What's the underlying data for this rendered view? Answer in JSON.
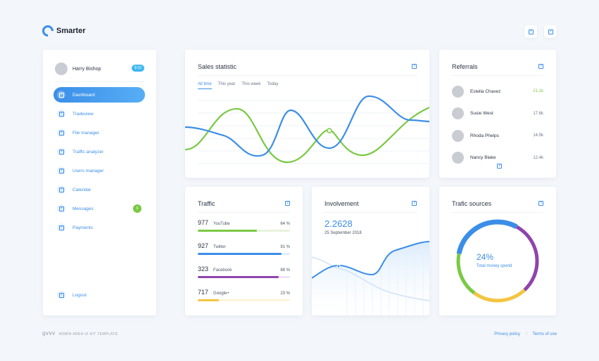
{
  "app": {
    "logo_text": "Smarter"
  },
  "header": {
    "icons": [
      "help-icon",
      "help-icon"
    ]
  },
  "sidebar": {
    "user_name": "Harry Bishop",
    "user_badge": "$ 52",
    "items": [
      {
        "label": "Dashboard",
        "active": true
      },
      {
        "label": "Tradeview"
      },
      {
        "label": "File manager"
      },
      {
        "label": "Traffic analyzer"
      },
      {
        "label": "Users manager"
      },
      {
        "label": "Calendar"
      },
      {
        "label": "Messages",
        "badge": "6"
      },
      {
        "label": "Payments"
      }
    ],
    "logout_label": "Logout"
  },
  "sales": {
    "title": "Sales statistic",
    "tabs": [
      "All time",
      "This year",
      "This week",
      "Today"
    ],
    "active_tab": "All time"
  },
  "referrals": {
    "title": "Referrals",
    "items": [
      {
        "name": "Estella Chavez",
        "value": "21.1k",
        "color": "#7ac943"
      },
      {
        "name": "Susie West",
        "value": "17.6k"
      },
      {
        "name": "Rhoda Phelps",
        "value": "14.5k"
      },
      {
        "name": "Nancy Blake",
        "value": "12.4k"
      }
    ]
  },
  "traffic": {
    "title": "Traffic",
    "items": [
      {
        "count": "977",
        "source": "YouTube",
        "percent": "64 %",
        "fill": 0.64,
        "color": "#7ac943",
        "track": "#e6f4da"
      },
      {
        "count": "927",
        "source": "Twitter",
        "percent": "91 %",
        "fill": 0.91,
        "color": "#3b8ee8",
        "track": "#e0eefc"
      },
      {
        "count": "323",
        "source": "Facebook",
        "percent": "88 %",
        "fill": 0.88,
        "color": "#8e44ad",
        "track": "#efe3f5"
      },
      {
        "count": "717",
        "source": "Google+",
        "percent": "23 %",
        "fill": 0.23,
        "color": "#f4c542",
        "track": "#fdf4d8"
      }
    ]
  },
  "involvement": {
    "title": "Involvement",
    "value": "2.2628",
    "date": "25 September 2018"
  },
  "sources": {
    "title": "Trafic sources",
    "percent": "24%",
    "label": "Total money spend",
    "segments": [
      {
        "color": "#8e44ad",
        "fraction": 0.3
      },
      {
        "color": "#f4c542",
        "fraction": 0.22
      },
      {
        "color": "#7ac943",
        "fraction": 0.18
      },
      {
        "color": "#3b8ee8",
        "fraction": 0.3
      }
    ]
  },
  "footer": {
    "brand": "QVVV",
    "tagline": "ADMIN AREA UI KIT TEMPLATE",
    "links": [
      "Privacy policy",
      "Terms of use"
    ]
  }
}
